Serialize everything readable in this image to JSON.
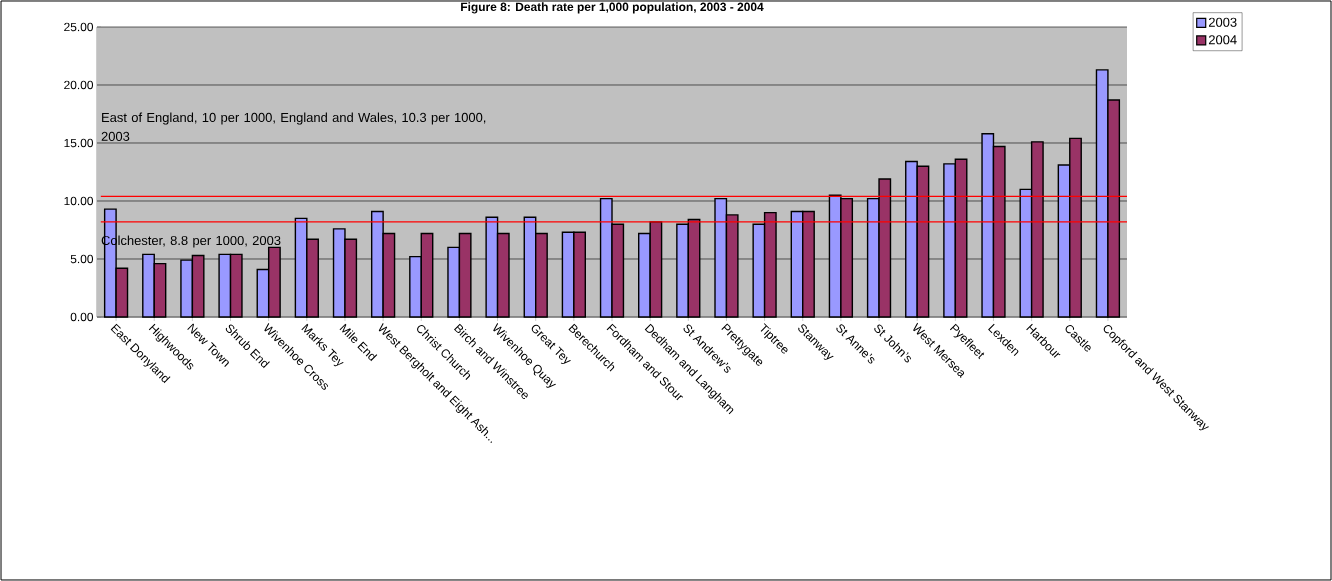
{
  "chart_data": {
    "type": "bar",
    "title": "Figure 8:  Death rate per 1,000 population, 2003 - 2004",
    "categories": [
      "East Donyland",
      "Highwoods",
      "New Town",
      "Shrub End",
      "Wivenhoe Cross",
      "Marks Tey",
      "Mile End",
      "West Bergholt and Eight Ash...",
      "Christ Church",
      "Birch and Winstree",
      "Wivenhoe Quay",
      "Great Tey",
      "Berechurch",
      "Fordham and Stour",
      "Dedham and Langham",
      "St Andrew’s",
      "Prettygate",
      "Tiptree",
      "Stanway",
      "St Anne’s",
      "St John’s",
      "West Mersea",
      "Pyefleet",
      "Lexden",
      "Harbour",
      "Castle",
      "Copford and West Stanway"
    ],
    "series": [
      {
        "name": "2003",
        "color": "#9999ff",
        "values": [
          9.3,
          5.4,
          4.9,
          5.4,
          4.1,
          8.5,
          7.6,
          9.1,
          5.2,
          6.0,
          8.6,
          8.6,
          7.3,
          10.2,
          7.2,
          8.0,
          10.2,
          8.0,
          9.1,
          10.5,
          10.2,
          13.4,
          13.2,
          15.8,
          11.0,
          13.1,
          21.3
        ]
      },
      {
        "name": "2004",
        "color": "#993366",
        "values": [
          4.2,
          4.6,
          5.3,
          5.4,
          6.0,
          6.7,
          6.7,
          7.2,
          7.2,
          7.2,
          7.2,
          7.2,
          7.3,
          8.0,
          8.2,
          8.4,
          8.8,
          9.0,
          9.1,
          10.2,
          11.9,
          13.0,
          13.6,
          14.7,
          15.1,
          15.4,
          18.7
        ]
      }
    ],
    "ylim": [
      0,
      25
    ],
    "yticks": [
      {
        "value": 0,
        "label": "0.00"
      },
      {
        "value": 5,
        "label": "5.00"
      },
      {
        "value": 10,
        "label": "10.00"
      },
      {
        "value": 15,
        "label": "15.00"
      },
      {
        "value": 20,
        "label": "20.00"
      },
      {
        "value": 25,
        "label": "25.00"
      }
    ],
    "grid": "y",
    "legend": "top right",
    "ref_lines": [
      {
        "axis": "y",
        "value": 10.4,
        "color": "#ff0000"
      },
      {
        "axis": "y",
        "value": 8.2,
        "color": "#ff0000"
      }
    ],
    "annotations": [
      "East of England, 10 per 1000, England and Wales, 10.3 per 1000, 2003",
      "Colchester, 8.8 per 1000, 2003"
    ]
  }
}
